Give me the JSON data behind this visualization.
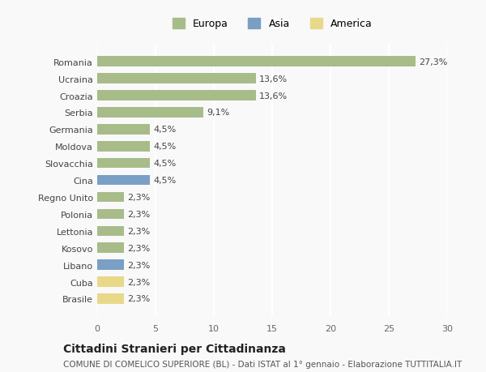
{
  "categories": [
    "Brasile",
    "Cuba",
    "Libano",
    "Kosovo",
    "Lettonia",
    "Polonia",
    "Regno Unito",
    "Cina",
    "Slovacchia",
    "Moldova",
    "Germania",
    "Serbia",
    "Croazia",
    "Ucraina",
    "Romania"
  ],
  "values": [
    2.3,
    2.3,
    2.3,
    2.3,
    2.3,
    2.3,
    2.3,
    4.5,
    4.5,
    4.5,
    4.5,
    9.1,
    13.6,
    13.6,
    27.3
  ],
  "labels": [
    "2,3%",
    "2,3%",
    "2,3%",
    "2,3%",
    "2,3%",
    "2,3%",
    "2,3%",
    "4,5%",
    "4,5%",
    "4,5%",
    "4,5%",
    "9,1%",
    "13,6%",
    "13,6%",
    "27,3%"
  ],
  "colors": [
    "#e8d98a",
    "#e8d98a",
    "#7a9fc4",
    "#a8bc8a",
    "#a8bc8a",
    "#a8bc8a",
    "#a8bc8a",
    "#7a9fc4",
    "#a8bc8a",
    "#a8bc8a",
    "#a8bc8a",
    "#a8bc8a",
    "#a8bc8a",
    "#a8bc8a",
    "#a8bc8a"
  ],
  "europa_color": "#a8bc8a",
  "asia_color": "#7a9fc4",
  "america_color": "#e8d98a",
  "xlim": [
    0,
    30
  ],
  "xticks": [
    0,
    5,
    10,
    15,
    20,
    25,
    30
  ],
  "title": "Cittadini Stranieri per Cittadinanza",
  "subtitle": "COMUNE DI COMELICO SUPERIORE (BL) - Dati ISTAT al 1° gennaio - Elaborazione TUTTITALIA.IT",
  "bg_color": "#f9f9f9",
  "grid_color": "#ffffff",
  "legend_europa": "Europa",
  "legend_asia": "Asia",
  "legend_america": "America"
}
